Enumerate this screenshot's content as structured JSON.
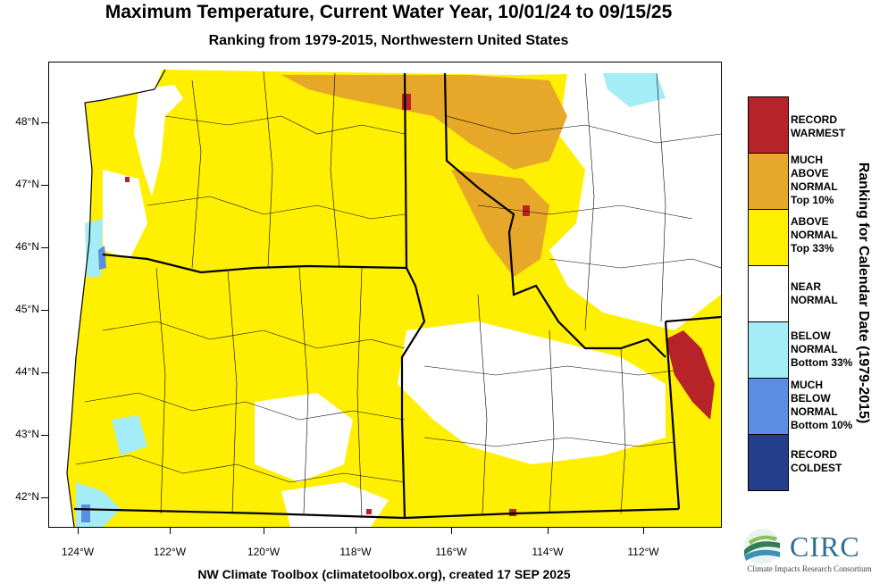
{
  "title": "Maximum Temperature, Current Water Year, 10/01/24 to 09/15/25",
  "subtitle": "Ranking from 1979-2015, Northwestern United States",
  "credit": "NW Climate Toolbox (climatetoolbox.org), created 17 SEP 2025",
  "map": {
    "region": "Northwestern United States",
    "lon_range": [
      -124.6,
      -110.0
    ],
    "lat_range": [
      41.5,
      49.0
    ],
    "lat_labels": [
      "48°N",
      "47°N",
      "46°N",
      "45°N",
      "44°N",
      "43°N",
      "42°N"
    ],
    "lon_labels": [
      "124°W",
      "122°W",
      "120°W",
      "118°W",
      "116°W",
      "114°W",
      "112°W"
    ],
    "lat_values": [
      48,
      47,
      46,
      45,
      44,
      43,
      42
    ],
    "lon_values": [
      -124,
      -122,
      -120,
      -118,
      -116,
      -114,
      -112
    ]
  },
  "legend": {
    "title": "Ranking for Calendar Date (1979-2015)",
    "items": [
      {
        "label1": "RECORD",
        "label2": "WARMEST",
        "label3": "",
        "label4": "",
        "color": "#b8232a"
      },
      {
        "label1": "MUCH",
        "label2": "ABOVE",
        "label3": "NORMAL",
        "label4": "Top 10%",
        "color": "#e7a729"
      },
      {
        "label1": "ABOVE",
        "label2": "NORMAL",
        "label3": "Top 33%",
        "label4": "",
        "color": "#ffef00"
      },
      {
        "label1": "NEAR",
        "label2": "NORMAL",
        "label3": "",
        "label4": "",
        "color": "#ffffff"
      },
      {
        "label1": "BELOW",
        "label2": "NORMAL",
        "label3": "Bottom 33%",
        "label4": "",
        "color": "#a4ecf6"
      },
      {
        "label1": "MUCH",
        "label2": "BELOW",
        "label3": "NORMAL",
        "label4": "Bottom 10%",
        "color": "#5b8ee0"
      },
      {
        "label1": "RECORD",
        "label2": "COLDEST",
        "label3": "",
        "label4": "",
        "color": "#243e8c"
      }
    ]
  },
  "logo": {
    "name": "CIRC",
    "subtitle": "Climate Impacts Research Consortium"
  }
}
